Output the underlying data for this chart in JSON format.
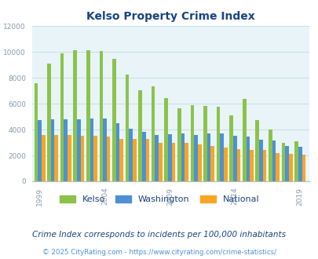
{
  "title": "Kelso Property Crime Index",
  "title_color": "#1a4480",
  "subtitle": "Crime Index corresponds to incidents per 100,000 inhabitants",
  "footer": "© 2025 CityRating.com - https://www.cityrating.com/crime-statistics/",
  "years": [
    1999,
    2000,
    2001,
    2002,
    2003,
    2004,
    2005,
    2006,
    2007,
    2008,
    2009,
    2010,
    2011,
    2012,
    2013,
    2014,
    2015,
    2016,
    2017,
    2018,
    2019,
    2020
  ],
  "kelso": [
    7600,
    9100,
    9850,
    10100,
    10100,
    10050,
    9450,
    8250,
    7050,
    7350,
    6400,
    5650,
    5900,
    5800,
    5750,
    5100,
    6350,
    4750,
    4000,
    2950,
    3100,
    null
  ],
  "washington": [
    4700,
    4800,
    4800,
    4800,
    4850,
    4850,
    4500,
    4050,
    3800,
    3550,
    3650,
    3700,
    3600,
    3700,
    3700,
    3500,
    3450,
    3200,
    3150,
    2700,
    2650,
    null
  ],
  "national": [
    3600,
    3600,
    3600,
    3500,
    3500,
    3450,
    3300,
    3250,
    3250,
    3000,
    2950,
    2950,
    2850,
    2700,
    2600,
    2500,
    2450,
    2400,
    2200,
    2100,
    2050,
    null
  ],
  "bar_colors": {
    "kelso": "#8bc34a",
    "washington": "#4d90d4",
    "national": "#f5a623"
  },
  "bg_color": "#e8f4f8",
  "ylim": [
    0,
    12000
  ],
  "yticks": [
    0,
    2000,
    4000,
    6000,
    8000,
    10000,
    12000
  ],
  "xtick_years": [
    1999,
    2004,
    2009,
    2014,
    2019
  ],
  "legend_labels": [
    "Kelso",
    "Washington",
    "National"
  ],
  "grid_color": "#c8dde6",
  "axes_color": "#8899aa",
  "tick_color": "#8899aa"
}
